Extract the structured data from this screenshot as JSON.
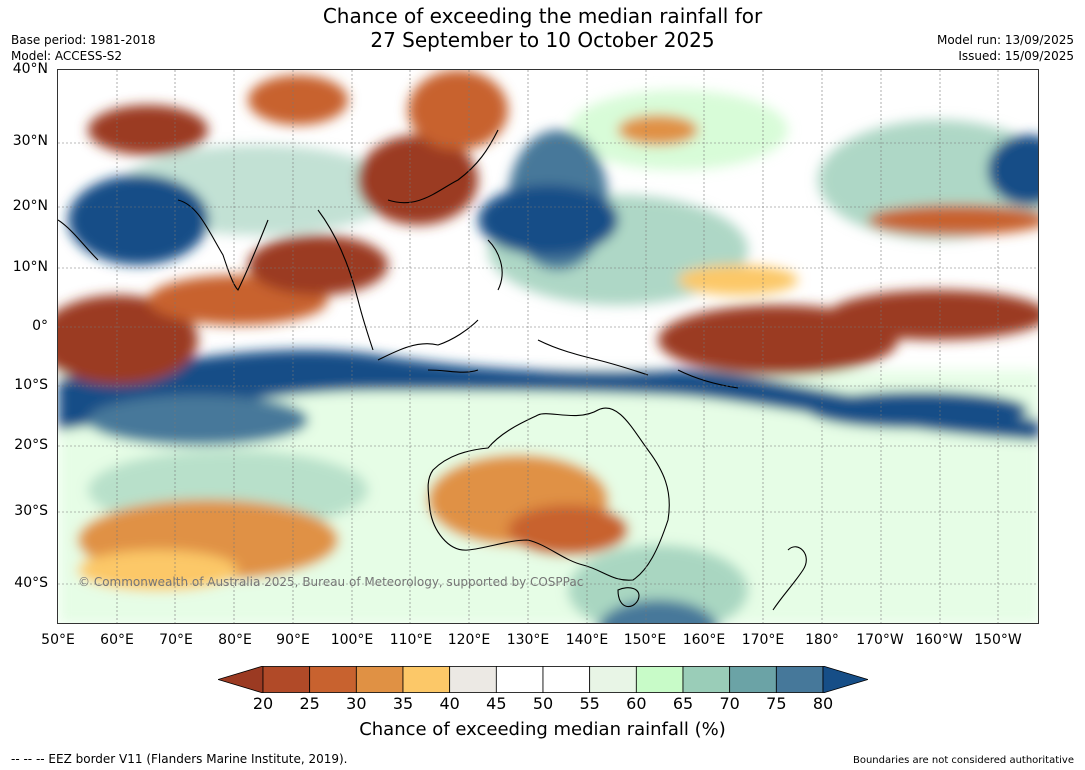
{
  "header": {
    "title_line1": "Chance of exceeding the median rainfall for",
    "title_line2": "27 September to 10 October 2025",
    "base_period": "Base period: 1981-2018",
    "model": "Model: ACCESS-S2",
    "model_run": "Model run: 13/09/2025",
    "issued": "Issued: 15/09/2025"
  },
  "map": {
    "lat_labels": [
      "40°N",
      "30°N",
      "20°N",
      "10°N",
      "0°",
      "10°S",
      "20°S",
      "30°S",
      "40°S"
    ],
    "lon_labels": [
      "50°E",
      "60°E",
      "70°E",
      "80°E",
      "90°E",
      "100°E",
      "110°E",
      "120°E",
      "130°E",
      "140°E",
      "150°E",
      "160°E",
      "170°E",
      "180°",
      "170°W",
      "160°W",
      "150°W"
    ],
    "copyright": "© Commonwealth of Australia 2025, Bureau of Meteorology, supported by COSPPac"
  },
  "legend": {
    "ticks": [
      "20",
      "25",
      "30",
      "35",
      "40",
      "45",
      "50",
      "55",
      "60",
      "65",
      "70",
      "75",
      "80"
    ],
    "colors": [
      "#9b3a22",
      "#b14a28",
      "#c8622f",
      "#e09144",
      "#fcc868",
      "#ece9e4",
      "#ffffff",
      "#ffffff",
      "#e8f5e6",
      "#c8fbc8",
      "#9acdb8",
      "#6ba3a6",
      "#46789a",
      "#164e87"
    ],
    "label": "Chance of exceeding median rainfall (%)"
  },
  "footer": {
    "eez": "--  --  -- EEZ border V11 (Flanders Marine Institute, 2019).",
    "disclaimer": "Boundaries are not considered authoritative"
  }
}
